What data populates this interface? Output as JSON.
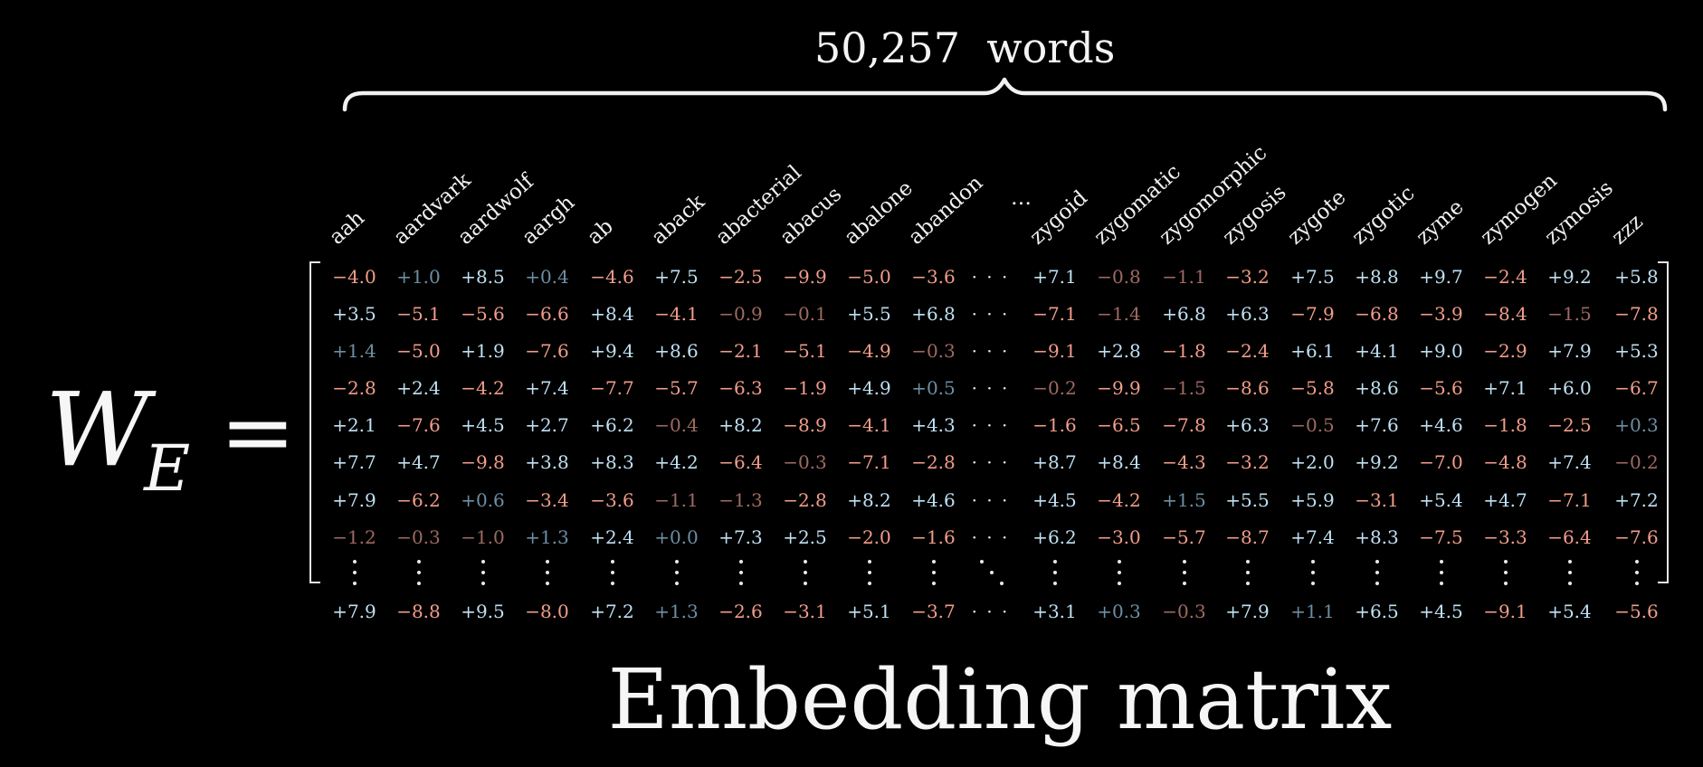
{
  "brace_label": "50,257  words",
  "symbol": {
    "main": "W",
    "subscript": "E",
    "equals": "="
  },
  "title": "Embedding matrix",
  "ellipsis": "…",
  "column_headers_left": [
    "aah",
    "aardvark",
    "aardwolf",
    "aargh",
    "ab",
    "aback",
    "abacterial",
    "abacus",
    "abalone",
    "abandon"
  ],
  "column_headers_right": [
    "zygoid",
    "zygomatic",
    "zygomorphic",
    "zygosis",
    "zygote",
    "zygotic",
    "zyme",
    "zymogen",
    "zymosis",
    "zzz"
  ],
  "rows": [
    {
      "left": [
        "−4.0",
        "+1.0",
        "+8.5",
        "+0.4",
        "−4.6",
        "+7.5",
        "−2.5",
        "−9.9",
        "−5.0",
        "−3.6"
      ],
      "right": [
        "+7.1",
        "−0.8",
        "−1.1",
        "−3.2",
        "+7.5",
        "+8.8",
        "+9.7",
        "−2.4",
        "+9.2",
        "+5.8"
      ]
    },
    {
      "left": [
        "+3.5",
        "−5.1",
        "−5.6",
        "−6.6",
        "+8.4",
        "−4.1",
        "−0.9",
        "−0.1",
        "+5.5",
        "+6.8"
      ],
      "right": [
        "−7.1",
        "−1.4",
        "+6.8",
        "+6.3",
        "−7.9",
        "−6.8",
        "−3.9",
        "−8.4",
        "−1.5",
        "−7.8"
      ]
    },
    {
      "left": [
        "+1.4",
        "−5.0",
        "+1.9",
        "−7.6",
        "+9.4",
        "+8.6",
        "−2.1",
        "−5.1",
        "−4.9",
        "−0.3"
      ],
      "right": [
        "−9.1",
        "+2.8",
        "−1.8",
        "−2.4",
        "+6.1",
        "+4.1",
        "+9.0",
        "−2.9",
        "+7.9",
        "+5.3"
      ]
    },
    {
      "left": [
        "−2.8",
        "+2.4",
        "−4.2",
        "+7.4",
        "−7.7",
        "−5.7",
        "−6.3",
        "−1.9",
        "+4.9",
        "+0.5"
      ],
      "right": [
        "−0.2",
        "−9.9",
        "−1.5",
        "−8.6",
        "−5.8",
        "+8.6",
        "−5.6",
        "+7.1",
        "+6.0",
        "−6.7"
      ]
    },
    {
      "left": [
        "+2.1",
        "−7.6",
        "+4.5",
        "+2.7",
        "+6.2",
        "−0.4",
        "+8.2",
        "−8.9",
        "−4.1",
        "+4.3"
      ],
      "right": [
        "−1.6",
        "−6.5",
        "−7.8",
        "+6.3",
        "−0.5",
        "+7.6",
        "+4.6",
        "−1.8",
        "−2.5",
        "+0.3"
      ]
    },
    {
      "left": [
        "+7.7",
        "+4.7",
        "−9.8",
        "+3.8",
        "+8.3",
        "+4.2",
        "−6.4",
        "−0.3",
        "−7.1",
        "−2.8"
      ],
      "right": [
        "+8.7",
        "+8.4",
        "−4.3",
        "−3.2",
        "+2.0",
        "+9.2",
        "−7.0",
        "−4.8",
        "+7.4",
        "−0.2"
      ]
    },
    {
      "left": [
        "+7.9",
        "−6.2",
        "+0.6",
        "−3.4",
        "−3.6",
        "−1.1",
        "−1.3",
        "−2.8",
        "+8.2",
        "+4.6"
      ],
      "right": [
        "+4.5",
        "−4.2",
        "+1.5",
        "+5.5",
        "+5.9",
        "−3.1",
        "+5.4",
        "+4.7",
        "−7.1",
        "+7.2"
      ]
    },
    {
      "left": [
        "−1.2",
        "−0.3",
        "−1.0",
        "+1.3",
        "+2.4",
        "+0.0",
        "+7.3",
        "+2.5",
        "−2.0",
        "−1.6"
      ],
      "right": [
        "+6.2",
        "−3.0",
        "−5.7",
        "−8.7",
        "+7.4",
        "+8.3",
        "−7.5",
        "−3.3",
        "−6.4",
        "−7.6"
      ]
    }
  ],
  "last_row": {
    "left": [
      "+7.9",
      "−8.8",
      "+9.5",
      "−8.0",
      "+7.2",
      "+1.3",
      "−2.6",
      "−3.1",
      "+5.1",
      "−3.7"
    ],
    "right": [
      "+3.1",
      "+0.3",
      "−0.3",
      "+7.9",
      "+1.1",
      "+6.5",
      "+4.5",
      "−9.1",
      "+5.4",
      "−5.6"
    ]
  },
  "colors": {
    "background": "#000000",
    "text": "#f2f2f2",
    "positive_strong": "#bfe0f2",
    "positive_weak": "#6d8ea4",
    "negative_strong": "#f29d8a",
    "negative_weak": "#9e6a62"
  }
}
